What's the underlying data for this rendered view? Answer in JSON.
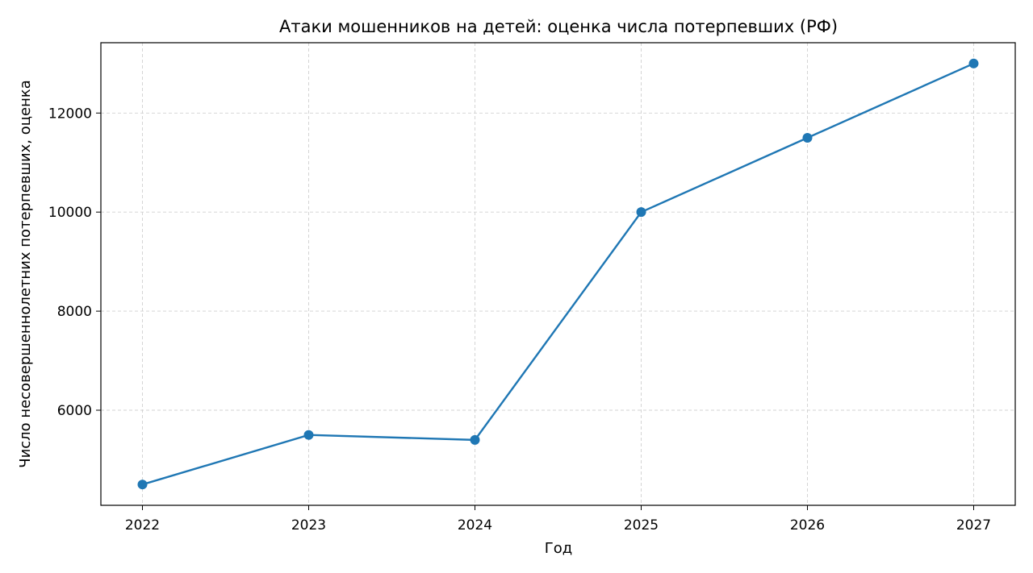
{
  "chart_data": {
    "type": "line",
    "title": "Атаки мошенников на детей: оценка числа потерпевших (РФ)",
    "xlabel": "Год",
    "ylabel": "Число несовершеннолетних потерпевших, оценка",
    "x": [
      2022,
      2023,
      2024,
      2025,
      2026,
      2027
    ],
    "series": [
      {
        "values": [
          4500,
          5500,
          5400,
          10000,
          11500,
          13000
        ]
      }
    ],
    "x_ticks": [
      "2022",
      "2023",
      "2024",
      "2025",
      "2026",
      "2027"
    ],
    "y_ticks": [
      6000,
      8000,
      10000,
      12000
    ],
    "y_tick_labels": [
      "6000",
      "8000",
      "10000",
      "12000"
    ],
    "xlim": [
      2021.75,
      2027.25
    ],
    "ylim": [
      4080,
      13420
    ],
    "grid": true,
    "line_color": "#1f77b4"
  }
}
